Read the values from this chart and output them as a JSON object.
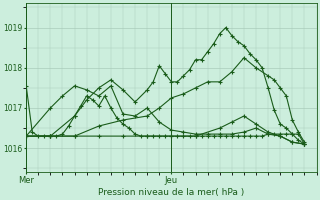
{
  "bg_color": "#cceedd",
  "grid_color": "#aaccbb",
  "line_color": "#1a5c1a",
  "title": "Pression niveau de la mer( hPa )",
  "ylim": [
    1015.4,
    1019.6
  ],
  "yticks": [
    1016,
    1017,
    1018,
    1019
  ],
  "xlim": [
    0,
    48
  ],
  "x_mer": 0,
  "x_jeu": 24,
  "series": [
    {
      "x": [
        0,
        1,
        2,
        3,
        4,
        5,
        6,
        7,
        8,
        9,
        10,
        11,
        12,
        13,
        14,
        15,
        16,
        17,
        18,
        19,
        20,
        21,
        22,
        23,
        24,
        25,
        26,
        27,
        28,
        29,
        30,
        31,
        32,
        33,
        34,
        35,
        36,
        37,
        38,
        39,
        40,
        41,
        42,
        43,
        44,
        45,
        46
      ],
      "y": [
        1017.55,
        1016.4,
        1016.3,
        1016.3,
        1016.3,
        1016.3,
        1016.35,
        1016.55,
        1016.8,
        1017.05,
        1017.3,
        1017.2,
        1017.05,
        1017.3,
        1017.0,
        1016.75,
        1016.6,
        1016.5,
        1016.35,
        1016.3,
        1016.3,
        1016.3,
        1016.3,
        1016.3,
        1016.3,
        1016.3,
        1016.3,
        1016.3,
        1016.3,
        1016.3,
        1016.3,
        1016.3,
        1016.3,
        1016.3,
        1016.3,
        1016.3,
        1016.3,
        1016.3,
        1016.3,
        1016.3,
        1016.35,
        1016.35,
        1016.35,
        1016.35,
        1016.35,
        1016.35,
        1016.1
      ]
    },
    {
      "x": [
        0,
        4,
        8,
        10,
        12,
        14,
        16,
        18,
        20,
        21,
        22,
        23,
        24,
        25,
        26,
        27,
        28,
        29,
        30,
        31,
        32,
        33,
        34,
        35,
        36,
        37,
        38,
        39,
        40,
        41,
        42,
        43,
        44,
        45,
        46
      ],
      "y": [
        1016.3,
        1016.3,
        1016.8,
        1017.2,
        1017.5,
        1017.7,
        1017.45,
        1017.15,
        1017.45,
        1017.65,
        1018.05,
        1017.85,
        1017.65,
        1017.65,
        1017.8,
        1017.95,
        1018.2,
        1018.2,
        1018.4,
        1018.6,
        1018.85,
        1019.0,
        1018.8,
        1018.65,
        1018.55,
        1018.35,
        1018.2,
        1018.0,
        1017.5,
        1016.95,
        1016.6,
        1016.5,
        1016.35,
        1016.2,
        1016.1
      ]
    },
    {
      "x": [
        0,
        4,
        8,
        12,
        16,
        20,
        22,
        24,
        26,
        28,
        30,
        32,
        34,
        36,
        38,
        40,
        41,
        42,
        43,
        44,
        45,
        46
      ],
      "y": [
        1016.3,
        1016.3,
        1016.3,
        1016.55,
        1016.7,
        1016.8,
        1017.0,
        1017.25,
        1017.35,
        1017.5,
        1017.65,
        1017.65,
        1017.9,
        1018.25,
        1018.0,
        1017.8,
        1017.7,
        1017.5,
        1017.3,
        1016.7,
        1016.4,
        1016.15
      ]
    },
    {
      "x": [
        0,
        4,
        8,
        12,
        16,
        20,
        24,
        28,
        32,
        34,
        36,
        38,
        40,
        42,
        44,
        46
      ],
      "y": [
        1016.3,
        1016.3,
        1016.3,
        1016.3,
        1016.3,
        1016.3,
        1016.3,
        1016.3,
        1016.5,
        1016.65,
        1016.8,
        1016.6,
        1016.4,
        1016.3,
        1016.15,
        1016.1
      ]
    },
    {
      "x": [
        0,
        4,
        6,
        8,
        10,
        12,
        14,
        16,
        18,
        20,
        22,
        24,
        26,
        28,
        30,
        32,
        34,
        36,
        38,
        40,
        42,
        44,
        46
      ],
      "y": [
        1016.3,
        1017.0,
        1017.3,
        1017.55,
        1017.45,
        1017.3,
        1017.55,
        1016.85,
        1016.8,
        1017.0,
        1016.65,
        1016.45,
        1016.4,
        1016.35,
        1016.35,
        1016.35,
        1016.35,
        1016.4,
        1016.5,
        1016.35,
        1016.3,
        1016.15,
        1016.1
      ]
    }
  ]
}
